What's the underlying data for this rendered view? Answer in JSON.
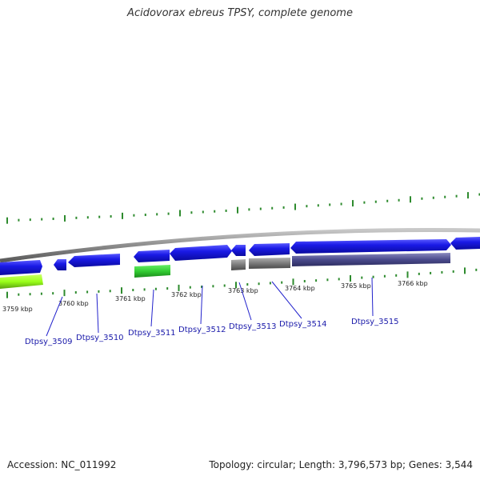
{
  "title": "Acidovorax ebreus TPSY, complete genome",
  "footer": {
    "accession": "Accession: NC_011992",
    "summary": "Topology: circular; Length: 3,796,573 bp; Genes: 3,544"
  },
  "scale_labels": [
    "3759 kbp",
    "3760 kbp",
    "3761 kbp",
    "3762 kbp",
    "3763 kbp",
    "3764 kbp",
    "3765 kbp",
    "3766 kbp"
  ],
  "genes": [
    "Dtpsy_3509",
    "Dtpsy_3510",
    "Dtpsy_3511",
    "Dtpsy_3512",
    "Dtpsy_3513",
    "Dtpsy_3514",
    "Dtpsy_3515"
  ],
  "colors": {
    "cds": "#1a1ae6",
    "backbone": "#8c8c8c",
    "tick": "#2e8b2e",
    "rna_light": "#9aff1a",
    "rna_green": "#33cc33",
    "gray_feature": "#707070",
    "purple_feature": "#4a4a8c",
    "gene_label": "#1a1aaa",
    "callout_line": "#2222cc"
  }
}
